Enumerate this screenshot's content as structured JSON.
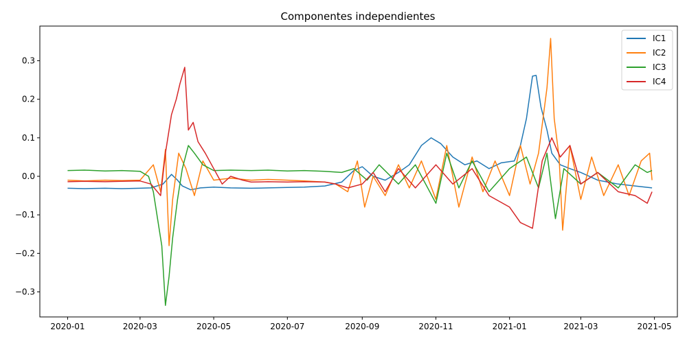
{
  "chart_data": {
    "type": "line",
    "title": "Componentes independientes",
    "xlabel": "",
    "ylabel": "",
    "x_range": [
      "2019-12-09",
      "2021-05-20"
    ],
    "ylim": [
      -0.365,
      0.39
    ],
    "x_ticks": [
      {
        "date": "2020-01-01",
        "label": "2020-01"
      },
      {
        "date": "2020-03-01",
        "label": "2020-03"
      },
      {
        "date": "2020-05-01",
        "label": "2020-05"
      },
      {
        "date": "2020-07-01",
        "label": "2020-07"
      },
      {
        "date": "2020-09-01",
        "label": "2020-09"
      },
      {
        "date": "2020-11-01",
        "label": "2020-11"
      },
      {
        "date": "2021-01-01",
        "label": "2021-01"
      },
      {
        "date": "2021-03-01",
        "label": "2021-03"
      },
      {
        "date": "2021-05-01",
        "label": "2021-05"
      }
    ],
    "y_ticks": [
      {
        "value": 0.3,
        "label": "0.3"
      },
      {
        "value": 0.2,
        "label": "0.2"
      },
      {
        "value": 0.1,
        "label": "0.1"
      },
      {
        "value": 0.0,
        "label": "0.0"
      },
      {
        "value": -0.1,
        "label": "−0.1"
      },
      {
        "value": -0.2,
        "label": "−0.2"
      },
      {
        "value": -0.3,
        "label": "−0.3"
      }
    ],
    "grid": false,
    "legend_position": "top-right",
    "series": [
      {
        "name": "IC1",
        "color": "#1f77b4",
        "points": [
          [
            "2020-01-01",
            -0.031
          ],
          [
            "2020-01-15",
            -0.032
          ],
          [
            "2020-02-01",
            -0.031
          ],
          [
            "2020-02-15",
            -0.032
          ],
          [
            "2020-03-01",
            -0.031
          ],
          [
            "2020-03-10",
            -0.03
          ],
          [
            "2020-03-20",
            -0.02
          ],
          [
            "2020-03-27",
            0.005
          ],
          [
            "2020-04-01",
            -0.01
          ],
          [
            "2020-04-05",
            -0.025
          ],
          [
            "2020-04-12",
            -0.035
          ],
          [
            "2020-04-20",
            -0.03
          ],
          [
            "2020-05-01",
            -0.028
          ],
          [
            "2020-05-15",
            -0.03
          ],
          [
            "2020-06-01",
            -0.031
          ],
          [
            "2020-06-15",
            -0.03
          ],
          [
            "2020-07-01",
            -0.029
          ],
          [
            "2020-07-15",
            -0.028
          ],
          [
            "2020-08-01",
            -0.025
          ],
          [
            "2020-08-15",
            -0.015
          ],
          [
            "2020-08-25",
            0.015
          ],
          [
            "2020-09-01",
            0.025
          ],
          [
            "2020-09-10",
            0.0
          ],
          [
            "2020-09-20",
            -0.01
          ],
          [
            "2020-10-01",
            0.01
          ],
          [
            "2020-10-10",
            0.03
          ],
          [
            "2020-10-20",
            0.08
          ],
          [
            "2020-10-28",
            0.1
          ],
          [
            "2020-11-05",
            0.085
          ],
          [
            "2020-11-15",
            0.05
          ],
          [
            "2020-11-25",
            0.03
          ],
          [
            "2020-12-05",
            0.04
          ],
          [
            "2020-12-15",
            0.02
          ],
          [
            "2020-12-25",
            0.035
          ],
          [
            "2021-01-05",
            0.04
          ],
          [
            "2021-01-10",
            0.08
          ],
          [
            "2021-01-15",
            0.15
          ],
          [
            "2021-01-20",
            0.26
          ],
          [
            "2021-01-23",
            0.262
          ],
          [
            "2021-01-27",
            0.18
          ],
          [
            "2021-02-01",
            0.12
          ],
          [
            "2021-02-05",
            0.06
          ],
          [
            "2021-02-12",
            0.03
          ],
          [
            "2021-02-20",
            0.02
          ],
          [
            "2021-03-01",
            0.01
          ],
          [
            "2021-03-15",
            -0.01
          ],
          [
            "2021-04-01",
            -0.02
          ],
          [
            "2021-04-15",
            -0.025
          ],
          [
            "2021-04-29",
            -0.03
          ]
        ]
      },
      {
        "name": "IC2",
        "color": "#ff7f0e",
        "points": [
          [
            "2020-01-01",
            -0.01
          ],
          [
            "2020-01-15",
            -0.012
          ],
          [
            "2020-02-01",
            -0.01
          ],
          [
            "2020-02-15",
            -0.011
          ],
          [
            "2020-03-01",
            -0.01
          ],
          [
            "2020-03-12",
            0.03
          ],
          [
            "2020-03-18",
            -0.04
          ],
          [
            "2020-03-22",
            0.07
          ],
          [
            "2020-03-25",
            -0.18
          ],
          [
            "2020-03-28",
            -0.06
          ],
          [
            "2020-04-02",
            0.06
          ],
          [
            "2020-04-08",
            0.02
          ],
          [
            "2020-04-15",
            -0.05
          ],
          [
            "2020-04-22",
            0.04
          ],
          [
            "2020-05-01",
            -0.01
          ],
          [
            "2020-05-15",
            -0.005
          ],
          [
            "2020-06-01",
            -0.01
          ],
          [
            "2020-06-15",
            -0.008
          ],
          [
            "2020-07-01",
            -0.01
          ],
          [
            "2020-07-15",
            -0.012
          ],
          [
            "2020-08-01",
            -0.015
          ],
          [
            "2020-08-10",
            -0.02
          ],
          [
            "2020-08-20",
            -0.04
          ],
          [
            "2020-08-28",
            0.04
          ],
          [
            "2020-09-03",
            -0.08
          ],
          [
            "2020-09-10",
            0.0
          ],
          [
            "2020-09-20",
            -0.05
          ],
          [
            "2020-10-01",
            0.03
          ],
          [
            "2020-10-10",
            -0.03
          ],
          [
            "2020-10-20",
            0.04
          ],
          [
            "2020-11-01",
            -0.06
          ],
          [
            "2020-11-10",
            0.08
          ],
          [
            "2020-11-20",
            -0.08
          ],
          [
            "2020-12-01",
            0.05
          ],
          [
            "2020-12-10",
            -0.04
          ],
          [
            "2020-12-20",
            0.04
          ],
          [
            "2021-01-01",
            -0.05
          ],
          [
            "2021-01-10",
            0.08
          ],
          [
            "2021-01-18",
            -0.02
          ],
          [
            "2021-01-25",
            0.06
          ],
          [
            "2021-02-01",
            0.23
          ],
          [
            "2021-02-04",
            0.358
          ],
          [
            "2021-02-07",
            0.15
          ],
          [
            "2021-02-11",
            0.05
          ],
          [
            "2021-02-14",
            -0.14
          ],
          [
            "2021-02-20",
            0.08
          ],
          [
            "2021-03-01",
            -0.06
          ],
          [
            "2021-03-10",
            0.05
          ],
          [
            "2021-03-20",
            -0.05
          ],
          [
            "2021-04-01",
            0.03
          ],
          [
            "2021-04-10",
            -0.05
          ],
          [
            "2021-04-20",
            0.04
          ],
          [
            "2021-04-27",
            0.06
          ],
          [
            "2021-04-29",
            -0.01
          ]
        ]
      },
      {
        "name": "IC3",
        "color": "#2ca02c",
        "points": [
          [
            "2020-01-01",
            0.015
          ],
          [
            "2020-01-15",
            0.016
          ],
          [
            "2020-02-01",
            0.014
          ],
          [
            "2020-02-15",
            0.015
          ],
          [
            "2020-03-01",
            0.013
          ],
          [
            "2020-03-08",
            0.0
          ],
          [
            "2020-03-12",
            -0.04
          ],
          [
            "2020-03-16",
            -0.12
          ],
          [
            "2020-03-19",
            -0.18
          ],
          [
            "2020-03-22",
            -0.335
          ],
          [
            "2020-03-25",
            -0.26
          ],
          [
            "2020-03-28",
            -0.16
          ],
          [
            "2020-04-01",
            -0.06
          ],
          [
            "2020-04-05",
            0.02
          ],
          [
            "2020-04-10",
            0.08
          ],
          [
            "2020-04-15",
            0.06
          ],
          [
            "2020-04-22",
            0.03
          ],
          [
            "2020-05-01",
            0.015
          ],
          [
            "2020-05-15",
            0.016
          ],
          [
            "2020-06-01",
            0.015
          ],
          [
            "2020-06-15",
            0.016
          ],
          [
            "2020-07-01",
            0.014
          ],
          [
            "2020-07-15",
            0.015
          ],
          [
            "2020-08-01",
            0.013
          ],
          [
            "2020-08-15",
            0.01
          ],
          [
            "2020-08-25",
            0.02
          ],
          [
            "2020-09-05",
            -0.01
          ],
          [
            "2020-09-15",
            0.03
          ],
          [
            "2020-10-01",
            -0.02
          ],
          [
            "2020-10-15",
            0.03
          ],
          [
            "2020-11-01",
            -0.07
          ],
          [
            "2020-11-10",
            0.06
          ],
          [
            "2020-11-20",
            -0.03
          ],
          [
            "2020-12-01",
            0.04
          ],
          [
            "2020-12-15",
            -0.04
          ],
          [
            "2021-01-01",
            0.02
          ],
          [
            "2021-01-15",
            0.05
          ],
          [
            "2021-01-25",
            -0.03
          ],
          [
            "2021-02-01",
            0.06
          ],
          [
            "2021-02-08",
            -0.11
          ],
          [
            "2021-02-15",
            0.02
          ],
          [
            "2021-03-01",
            -0.02
          ],
          [
            "2021-03-15",
            0.01
          ],
          [
            "2021-04-01",
            -0.03
          ],
          [
            "2021-04-15",
            0.03
          ],
          [
            "2021-04-25",
            0.01
          ],
          [
            "2021-04-29",
            0.015
          ]
        ]
      },
      {
        "name": "IC4",
        "color": "#d62728",
        "points": [
          [
            "2020-01-01",
            -0.014
          ],
          [
            "2020-01-15",
            -0.013
          ],
          [
            "2020-02-01",
            -0.014
          ],
          [
            "2020-02-15",
            -0.013
          ],
          [
            "2020-03-01",
            -0.012
          ],
          [
            "2020-03-10",
            -0.02
          ],
          [
            "2020-03-18",
            -0.05
          ],
          [
            "2020-03-22",
            0.06
          ],
          [
            "2020-03-27",
            0.16
          ],
          [
            "2020-03-31",
            0.2
          ],
          [
            "2020-04-03",
            0.24
          ],
          [
            "2020-04-07",
            0.283
          ],
          [
            "2020-04-10",
            0.12
          ],
          [
            "2020-04-14",
            0.14
          ],
          [
            "2020-04-18",
            0.09
          ],
          [
            "2020-04-24",
            0.06
          ],
          [
            "2020-05-01",
            0.02
          ],
          [
            "2020-05-08",
            -0.02
          ],
          [
            "2020-05-15",
            0.0
          ],
          [
            "2020-05-25",
            -0.01
          ],
          [
            "2020-06-01",
            -0.015
          ],
          [
            "2020-06-15",
            -0.014
          ],
          [
            "2020-07-01",
            -0.015
          ],
          [
            "2020-07-15",
            -0.014
          ],
          [
            "2020-08-01",
            -0.015
          ],
          [
            "2020-08-10",
            -0.02
          ],
          [
            "2020-08-20",
            -0.03
          ],
          [
            "2020-09-01",
            -0.02
          ],
          [
            "2020-09-10",
            0.01
          ],
          [
            "2020-09-20",
            -0.04
          ],
          [
            "2020-10-01",
            0.02
          ],
          [
            "2020-10-15",
            -0.03
          ],
          [
            "2020-11-01",
            0.03
          ],
          [
            "2020-11-15",
            -0.02
          ],
          [
            "2020-12-01",
            0.02
          ],
          [
            "2020-12-15",
            -0.05
          ],
          [
            "2021-01-01",
            -0.08
          ],
          [
            "2021-01-10",
            -0.12
          ],
          [
            "2021-01-20",
            -0.135
          ],
          [
            "2021-01-28",
            0.04
          ],
          [
            "2021-02-05",
            0.1
          ],
          [
            "2021-02-12",
            0.05
          ],
          [
            "2021-02-20",
            0.08
          ],
          [
            "2021-03-01",
            -0.02
          ],
          [
            "2021-03-15",
            0.01
          ],
          [
            "2021-04-01",
            -0.04
          ],
          [
            "2021-04-15",
            -0.05
          ],
          [
            "2021-04-25",
            -0.07
          ],
          [
            "2021-04-29",
            -0.04
          ]
        ]
      }
    ]
  }
}
